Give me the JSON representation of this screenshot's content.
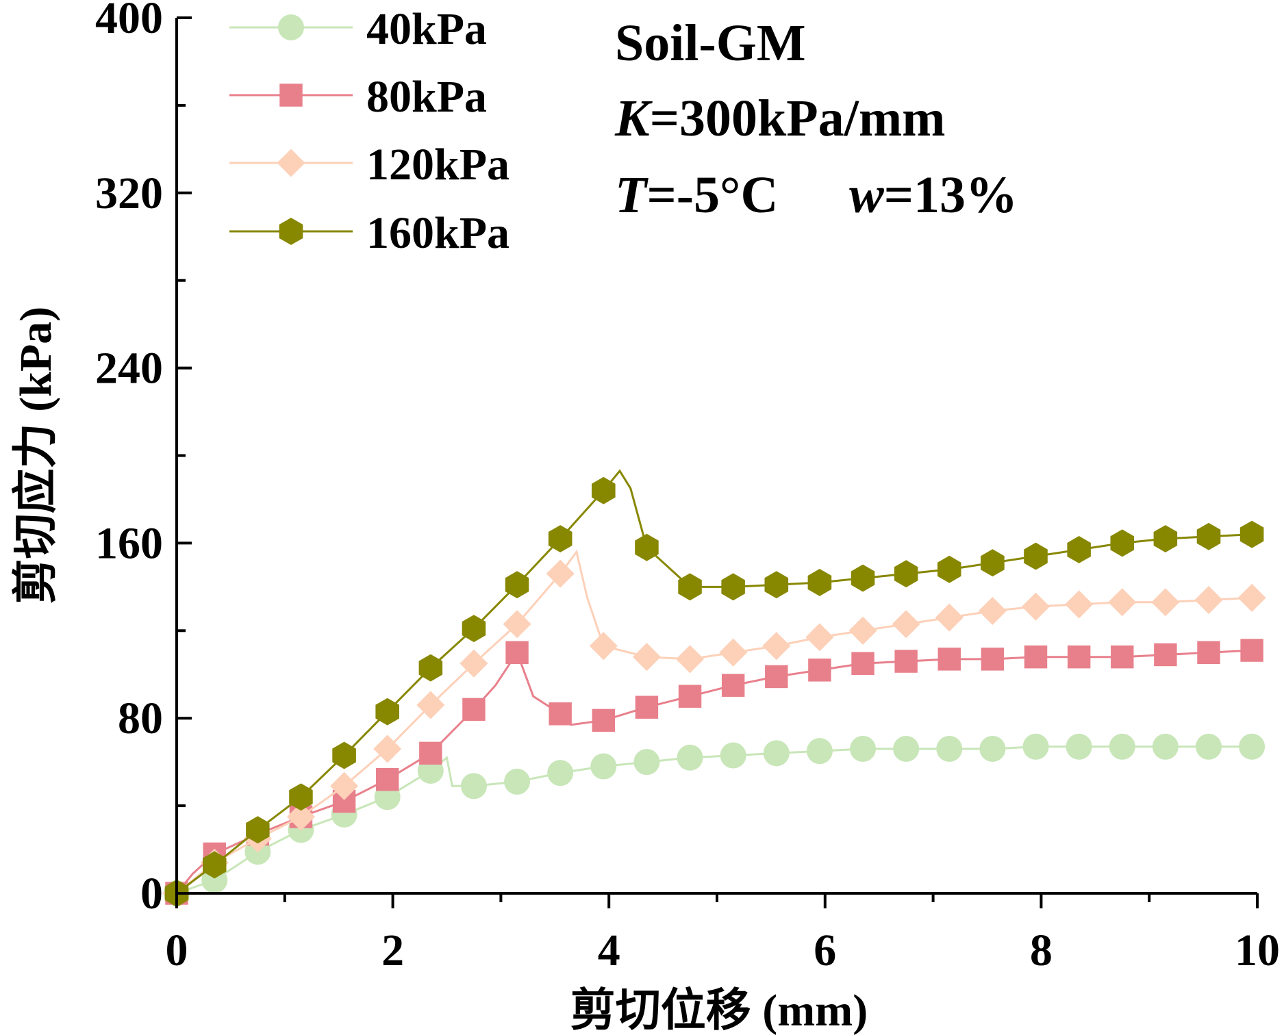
{
  "chart_data": {
    "type": "line",
    "title": "",
    "xlabel": "剪切位移 (mm)",
    "ylabel": "剪切应力 (kPa)",
    "xlim": [
      0,
      10
    ],
    "ylim": [
      0,
      400
    ],
    "xticks": [
      0,
      2,
      4,
      6,
      8,
      10
    ],
    "yticks": [
      0,
      80,
      160,
      240,
      320,
      400
    ],
    "grid": false,
    "legend_position": "top-left",
    "annotations": [
      {
        "id": "soil",
        "text": "Soil-GM"
      },
      {
        "id": "k",
        "italic": "K",
        "text": "=300kPa/mm"
      },
      {
        "id": "t",
        "italic": "T",
        "text": "=-5°C"
      },
      {
        "id": "w",
        "italic": "w",
        "text": "=13%"
      }
    ],
    "series": [
      {
        "name": "40kPa",
        "color": "#c8e6b8",
        "marker": "circle",
        "x": [
          0.0,
          0.35,
          0.75,
          1.15,
          1.55,
          1.95,
          2.35,
          2.5,
          2.55,
          2.75,
          3.15,
          3.55,
          3.95,
          4.35,
          4.75,
          5.15,
          5.55,
          5.95,
          6.35,
          6.75,
          7.15,
          7.55,
          7.95,
          8.35,
          8.75,
          9.15,
          9.55,
          9.95
        ],
        "values": [
          0,
          6,
          19,
          29,
          36,
          44,
          56,
          62,
          49,
          49,
          51,
          55,
          58,
          60,
          62,
          63,
          64,
          65,
          66,
          66,
          66,
          66,
          67,
          67,
          67,
          67,
          67,
          67
        ]
      },
      {
        "name": "80kPa",
        "color": "#e8808c",
        "marker": "square",
        "x": [
          0.0,
          0.15,
          0.35,
          0.75,
          1.15,
          1.55,
          1.95,
          2.35,
          2.75,
          2.95,
          3.15,
          3.3,
          3.55,
          3.65,
          3.95,
          4.35,
          4.75,
          5.15,
          5.55,
          5.95,
          6.35,
          6.75,
          7.15,
          7.55,
          7.95,
          8.35,
          8.75,
          9.15,
          9.55,
          9.95
        ],
        "values": [
          0,
          9,
          18,
          27,
          35,
          42,
          52,
          64,
          84,
          95,
          110,
          90,
          82,
          77,
          79,
          85,
          90,
          95,
          99,
          102,
          105,
          106,
          107,
          107,
          108,
          108,
          108,
          109,
          110,
          111
        ]
      },
      {
        "name": "120kPa",
        "color": "#fdd0b8",
        "marker": "diamond",
        "x": [
          0.0,
          0.35,
          0.75,
          1.15,
          1.55,
          1.95,
          2.35,
          2.75,
          3.15,
          3.55,
          3.7,
          3.8,
          3.95,
          4.35,
          4.75,
          5.15,
          5.55,
          5.95,
          6.35,
          6.75,
          7.15,
          7.55,
          7.95,
          8.35,
          8.75,
          9.15,
          9.55,
          9.95
        ],
        "values": [
          0,
          14,
          25,
          35,
          49,
          66,
          86,
          105,
          123,
          146,
          156,
          135,
          113,
          108,
          107,
          110,
          113,
          117,
          120,
          123,
          126,
          129,
          131,
          132,
          133,
          133,
          134,
          135
        ]
      },
      {
        "name": "160kPa",
        "color": "#878700",
        "marker": "hexagon",
        "x": [
          0.0,
          0.35,
          0.75,
          1.15,
          1.55,
          1.95,
          2.35,
          2.75,
          3.15,
          3.55,
          3.95,
          4.1,
          4.2,
          4.35,
          4.75,
          5.15,
          5.55,
          5.95,
          6.35,
          6.75,
          7.15,
          7.55,
          7.95,
          8.35,
          8.75,
          9.15,
          9.55,
          9.95
        ],
        "values": [
          0,
          13,
          29,
          44,
          63,
          83,
          103,
          121,
          141,
          162,
          184,
          193,
          185,
          158,
          140,
          140,
          141,
          142,
          144,
          146,
          148,
          151,
          154,
          157,
          160,
          162,
          163,
          164
        ]
      }
    ]
  }
}
